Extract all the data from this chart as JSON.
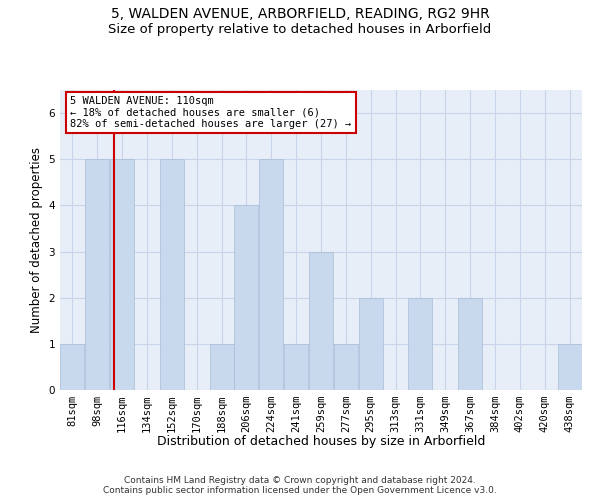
{
  "title1": "5, WALDEN AVENUE, ARBORFIELD, READING, RG2 9HR",
  "title2": "Size of property relative to detached houses in Arborfield",
  "xlabel": "Distribution of detached houses by size in Arborfield",
  "ylabel": "Number of detached properties",
  "categories": [
    "81sqm",
    "98sqm",
    "116sqm",
    "134sqm",
    "152sqm",
    "170sqm",
    "188sqm",
    "206sqm",
    "224sqm",
    "241sqm",
    "259sqm",
    "277sqm",
    "295sqm",
    "313sqm",
    "331sqm",
    "349sqm",
    "367sqm",
    "384sqm",
    "402sqm",
    "420sqm",
    "438sqm"
  ],
  "values": [
    1,
    5,
    5,
    0,
    5,
    0,
    1,
    4,
    5,
    1,
    3,
    1,
    2,
    0,
    2,
    0,
    2,
    0,
    0,
    0,
    1
  ],
  "bar_color": "#c8d9ee",
  "bar_edge_color": "#a8bdd8",
  "grid_color": "#c8d4e8",
  "background_color": "#e8eef8",
  "property_line_x": 1.67,
  "property_label": "5 WALDEN AVENUE: 110sqm",
  "annotation_line1": "← 18% of detached houses are smaller (6)",
  "annotation_line2": "82% of semi-detached houses are larger (27) →",
  "annotation_box_color": "#ffffff",
  "annotation_box_edge": "#cc0000",
  "red_line_color": "#cc0000",
  "footer_line1": "Contains HM Land Registry data © Crown copyright and database right 2024.",
  "footer_line2": "Contains public sector information licensed under the Open Government Licence v3.0.",
  "ylim": [
    0,
    6.5
  ],
  "yticks": [
    0,
    1,
    2,
    3,
    4,
    5,
    6
  ],
  "title1_fontsize": 10,
  "title2_fontsize": 9.5,
  "xlabel_fontsize": 9,
  "ylabel_fontsize": 8.5,
  "tick_fontsize": 7.5,
  "annot_fontsize": 7.5,
  "footer_fontsize": 6.5
}
